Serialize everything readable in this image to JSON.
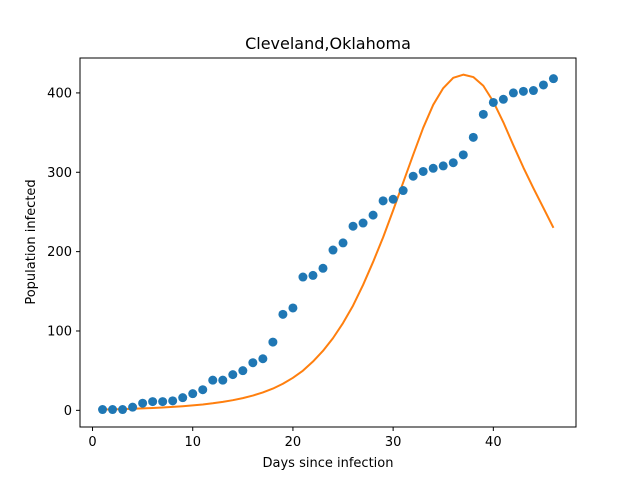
{
  "chart_data": {
    "type": "scatter",
    "title": "Cleveland,Oklahoma",
    "xlabel": "Days since infection",
    "ylabel": "Population infected",
    "xlim": [
      -1.25,
      48.25
    ],
    "ylim": [
      -21,
      444
    ],
    "xticks": [
      0,
      10,
      20,
      30,
      40
    ],
    "yticks": [
      0,
      100,
      200,
      300,
      400
    ],
    "grid": false,
    "legend": "none",
    "series": [
      {
        "kind": "scatter",
        "color": "#1f77b4",
        "x": [
          1,
          2,
          3,
          4,
          5,
          6,
          7,
          8,
          9,
          10,
          11,
          12,
          13,
          14,
          15,
          16,
          17,
          18,
          19,
          20,
          21,
          22,
          23,
          24,
          25,
          26,
          27,
          28,
          29,
          30,
          31,
          32,
          33,
          34,
          35,
          36,
          37,
          38,
          39,
          40,
          41,
          42,
          43,
          44,
          45,
          46
        ],
        "y": [
          1,
          1,
          1,
          4,
          9,
          11,
          11,
          12,
          16,
          21,
          26,
          38,
          38,
          45,
          50,
          60,
          65,
          86,
          121,
          129,
          168,
          170,
          179,
          202,
          211,
          232,
          236,
          246,
          264,
          266,
          277,
          295,
          301,
          305,
          308,
          312,
          322,
          344,
          373,
          388,
          392,
          400,
          402,
          403,
          410,
          418
        ]
      },
      {
        "kind": "line",
        "color": "#ff7f0e",
        "x": [
          1,
          2,
          3,
          4,
          5,
          6,
          7,
          8,
          9,
          10,
          11,
          12,
          13,
          14,
          15,
          16,
          17,
          18,
          19,
          20,
          21,
          22,
          23,
          24,
          25,
          26,
          27,
          28,
          29,
          30,
          31,
          32,
          33,
          34,
          35,
          36,
          37,
          38,
          39,
          40,
          41,
          42,
          43,
          44,
          45,
          46
        ],
        "y": [
          1,
          1.2,
          1.5,
          2,
          2.5,
          3,
          3.6,
          4.3,
          5.2,
          6.2,
          7.4,
          8.9,
          10.7,
          12.8,
          15.4,
          18.6,
          22.5,
          27.4,
          33.5,
          41,
          50,
          61.5,
          75,
          91,
          110,
          132,
          158,
          187,
          218,
          252,
          287,
          322,
          356,
          385,
          406,
          419,
          423,
          420,
          409,
          389,
          363,
          334,
          306,
          280,
          255,
          230
        ]
      }
    ]
  }
}
